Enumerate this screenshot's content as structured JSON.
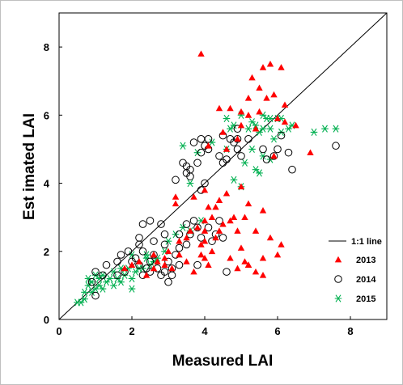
{
  "chart_data": {
    "type": "scatter",
    "title": "",
    "xlabel": "Measured LAI",
    "ylabel": "Est imated LAI",
    "xlim": [
      0,
      9
    ],
    "ylim": [
      0,
      9
    ],
    "xticks": [
      "0",
      "2",
      "4",
      "6",
      "8"
    ],
    "yticks": [
      "0",
      "2",
      "4",
      "6",
      "8"
    ],
    "grid": false,
    "legend_position": "bottom-right",
    "reference_line": {
      "label": "1:1 line",
      "color": "#000000"
    },
    "series": [
      {
        "name": "2013",
        "marker": "triangle",
        "color": "#ff0000",
        "points": [
          [
            3.9,
            7.8
          ],
          [
            5.8,
            7.5
          ],
          [
            6.1,
            7.4
          ],
          [
            5.6,
            7.4
          ],
          [
            5.3,
            7.1
          ],
          [
            5.5,
            6.8
          ],
          [
            5.9,
            6.6
          ],
          [
            5.7,
            6.5
          ],
          [
            5.2,
            6.5
          ],
          [
            4.7,
            6.2
          ],
          [
            5.0,
            6.1
          ],
          [
            5.2,
            6.0
          ],
          [
            5.5,
            6.1
          ],
          [
            6.0,
            5.9
          ],
          [
            6.2,
            5.8
          ],
          [
            5.0,
            5.7
          ],
          [
            5.4,
            5.6
          ],
          [
            4.4,
            6.2
          ],
          [
            4.5,
            5.5
          ],
          [
            4.9,
            5.3
          ],
          [
            6.9,
            4.9
          ],
          [
            6.5,
            5.7
          ],
          [
            4.1,
            5.1
          ],
          [
            3.2,
            3.6
          ],
          [
            3.2,
            3.4
          ],
          [
            3.7,
            3.6
          ],
          [
            4.0,
            3.8
          ],
          [
            4.1,
            3.3
          ],
          [
            4.2,
            3.0
          ],
          [
            4.3,
            3.3
          ],
          [
            4.4,
            3.5
          ],
          [
            4.6,
            3.7
          ],
          [
            4.8,
            3.0
          ],
          [
            5.2,
            3.4
          ],
          [
            5.1,
            3.0
          ],
          [
            4.7,
            2.9
          ],
          [
            4.0,
            2.9
          ],
          [
            3.8,
            2.7
          ],
          [
            3.6,
            2.6
          ],
          [
            3.5,
            2.4
          ],
          [
            4.0,
            2.6
          ],
          [
            4.5,
            2.8
          ],
          [
            4.9,
            2.6
          ],
          [
            5.4,
            2.6
          ],
          [
            5.8,
            2.4
          ],
          [
            5.6,
            1.8
          ],
          [
            6.0,
            1.9
          ],
          [
            5.2,
            1.6
          ],
          [
            4.7,
            1.8
          ],
          [
            4.2,
            2.0
          ],
          [
            4.0,
            2.3
          ],
          [
            3.9,
            1.9
          ],
          [
            3.3,
            1.9
          ],
          [
            3.0,
            2.0
          ],
          [
            2.9,
            1.8
          ],
          [
            2.7,
            1.7
          ],
          [
            3.1,
            1.5
          ],
          [
            3.5,
            1.7
          ],
          [
            2.6,
            1.5
          ],
          [
            2.4,
            1.3
          ],
          [
            2.2,
            1.7
          ],
          [
            2.0,
            1.6
          ],
          [
            1.8,
            1.5
          ],
          [
            4.9,
            1.5
          ],
          [
            5.2,
            1.6
          ],
          [
            5.1,
            1.7
          ],
          [
            5.6,
            1.3
          ],
          [
            4.0,
            1.8
          ],
          [
            5.9,
            4.8
          ],
          [
            5.0,
            3.9
          ],
          [
            6.2,
            6.3
          ],
          [
            5.6,
            3.2
          ],
          [
            3.9,
            2.2
          ],
          [
            4.4,
            2.6
          ],
          [
            3.3,
            2.3
          ],
          [
            5.0,
            2.1
          ],
          [
            6.1,
            2.2
          ],
          [
            4.1,
            1.6
          ],
          [
            5.4,
            1.4
          ],
          [
            2.6,
            1.9
          ],
          [
            2.9,
            1.6
          ],
          [
            4.3,
            2.4
          ],
          [
            3.7,
            1.4
          ],
          [
            4.6,
            5.0
          ]
        ]
      },
      {
        "name": "2014",
        "marker": "circle",
        "color": "#000000",
        "points": [
          [
            3.7,
            5.2
          ],
          [
            3.9,
            5.3
          ],
          [
            4.0,
            5.1
          ],
          [
            4.1,
            5.3
          ],
          [
            4.5,
            5.4
          ],
          [
            4.7,
            5.3
          ],
          [
            4.9,
            5.6
          ],
          [
            4.9,
            5.3
          ],
          [
            3.9,
            4.9
          ],
          [
            4.1,
            5.0
          ],
          [
            4.4,
            4.8
          ],
          [
            4.6,
            4.7
          ],
          [
            4.9,
            5.0
          ],
          [
            5.0,
            4.8
          ],
          [
            3.4,
            4.6
          ],
          [
            3.5,
            4.5
          ],
          [
            3.6,
            4.4
          ],
          [
            3.8,
            4.6
          ],
          [
            3.2,
            4.1
          ],
          [
            3.5,
            4.3
          ],
          [
            5.6,
            5.0
          ],
          [
            5.7,
            4.7
          ],
          [
            5.9,
            4.8
          ],
          [
            6.0,
            5.0
          ],
          [
            6.1,
            5.4
          ],
          [
            6.3,
            4.9
          ],
          [
            6.4,
            4.4
          ],
          [
            7.6,
            5.1
          ],
          [
            5.2,
            5.3
          ],
          [
            4.0,
            4.0
          ],
          [
            3.9,
            3.8
          ],
          [
            4.5,
            4.6
          ],
          [
            3.7,
            2.9
          ],
          [
            3.8,
            2.7
          ],
          [
            3.6,
            2.5
          ],
          [
            4.1,
            2.7
          ],
          [
            4.4,
            2.9
          ],
          [
            4.5,
            2.4
          ],
          [
            4.2,
            2.3
          ],
          [
            3.9,
            2.4
          ],
          [
            3.5,
            2.2
          ],
          [
            3.3,
            2.5
          ],
          [
            2.9,
            2.5
          ],
          [
            2.8,
            2.8
          ],
          [
            2.5,
            2.9
          ],
          [
            2.3,
            2.8
          ],
          [
            2.2,
            2.4
          ],
          [
            2.2,
            2.2
          ],
          [
            2.3,
            2.0
          ],
          [
            2.1,
            1.8
          ],
          [
            2.2,
            1.6
          ],
          [
            2.4,
            1.5
          ],
          [
            2.5,
            1.4
          ],
          [
            2.7,
            1.5
          ],
          [
            2.9,
            1.4
          ],
          [
            3.1,
            1.5
          ],
          [
            3.3,
            1.6
          ],
          [
            3.1,
            1.3
          ],
          [
            3.0,
            1.1
          ],
          [
            2.8,
            1.3
          ],
          [
            2.5,
            1.7
          ],
          [
            2.3,
            1.3
          ],
          [
            2.6,
            1.9
          ],
          [
            3.0,
            1.7
          ],
          [
            3.2,
            1.9
          ],
          [
            3.8,
            1.6
          ],
          [
            4.3,
            2.5
          ],
          [
            4.6,
            1.4
          ],
          [
            1.6,
            1.7
          ],
          [
            1.7,
            1.9
          ],
          [
            1.8,
            1.4
          ],
          [
            1.6,
            1.3
          ],
          [
            1.3,
            1.6
          ],
          [
            1.2,
            1.3
          ],
          [
            1.0,
            1.4
          ],
          [
            0.9,
            1.1
          ],
          [
            1.0,
            0.7
          ],
          [
            3.6,
            4.2
          ],
          [
            2.0,
            1.7
          ],
          [
            1.9,
            2.0
          ],
          [
            4.8,
            5.2
          ],
          [
            3.3,
            2.1
          ],
          [
            2.6,
            2.3
          ],
          [
            2.9,
            2.2
          ],
          [
            3.5,
            2.8
          ]
        ]
      },
      {
        "name": "2015",
        "marker": "asterisk",
        "color": "#00b050",
        "points": [
          [
            3.4,
            5.1
          ],
          [
            4.6,
            5.9
          ],
          [
            4.7,
            5.6
          ],
          [
            4.8,
            5.7
          ],
          [
            5.0,
            6.0
          ],
          [
            5.2,
            5.6
          ],
          [
            5.3,
            5.8
          ],
          [
            5.4,
            5.7
          ],
          [
            5.6,
            6.0
          ],
          [
            5.7,
            5.9
          ],
          [
            5.8,
            5.9
          ],
          [
            6.0,
            5.9
          ],
          [
            5.5,
            5.5
          ],
          [
            5.3,
            5.0
          ],
          [
            5.6,
            4.8
          ],
          [
            5.9,
            5.3
          ],
          [
            6.1,
            5.5
          ],
          [
            6.4,
            5.7
          ],
          [
            7.0,
            5.5
          ],
          [
            7.3,
            5.6
          ],
          [
            7.6,
            5.6
          ],
          [
            6.3,
            5.6
          ],
          [
            5.8,
            5.6
          ],
          [
            4.6,
            5.0
          ],
          [
            5.5,
            4.3
          ],
          [
            5.8,
            4.7
          ],
          [
            6.1,
            5.9
          ],
          [
            3.8,
            4.9
          ],
          [
            4.2,
            5.2
          ],
          [
            3.6,
            4.0
          ],
          [
            5.6,
            5.6
          ],
          [
            5.1,
            4.6
          ],
          [
            2.4,
            1.9
          ],
          [
            2.5,
            1.6
          ],
          [
            2.6,
            1.7
          ],
          [
            2.3,
            1.5
          ],
          [
            2.1,
            1.4
          ],
          [
            2.0,
            1.2
          ],
          [
            1.8,
            1.3
          ],
          [
            1.7,
            1.5
          ],
          [
            1.5,
            1.4
          ],
          [
            1.4,
            1.2
          ],
          [
            1.3,
            1.1
          ],
          [
            1.2,
            1.3
          ],
          [
            1.1,
            1.2
          ],
          [
            1.0,
            1.3
          ],
          [
            0.9,
            1.1
          ],
          [
            0.8,
            1.0
          ],
          [
            0.8,
            1.2
          ],
          [
            0.7,
            0.8
          ],
          [
            0.6,
            0.5
          ],
          [
            0.5,
            0.5
          ],
          [
            0.7,
            0.6
          ],
          [
            0.9,
            0.8
          ],
          [
            1.0,
            0.9
          ],
          [
            1.1,
            1.0
          ],
          [
            1.2,
            0.9
          ],
          [
            1.5,
            1.0
          ],
          [
            1.6,
            1.2
          ],
          [
            2.0,
            0.9
          ],
          [
            2.2,
            1.5
          ],
          [
            2.7,
            1.8
          ],
          [
            2.9,
            2.0
          ],
          [
            3.0,
            2.3
          ],
          [
            3.2,
            2.5
          ],
          [
            3.4,
            2.7
          ],
          [
            3.6,
            2.6
          ],
          [
            3.9,
            2.9
          ],
          [
            2.0,
            1.9
          ],
          [
            1.7,
            1.1
          ],
          [
            1.9,
            1.5
          ],
          [
            5.0,
            3.9
          ],
          [
            5.4,
            4.4
          ],
          [
            4.8,
            4.1
          ],
          [
            2.4,
            1.8
          ]
        ]
      }
    ]
  }
}
